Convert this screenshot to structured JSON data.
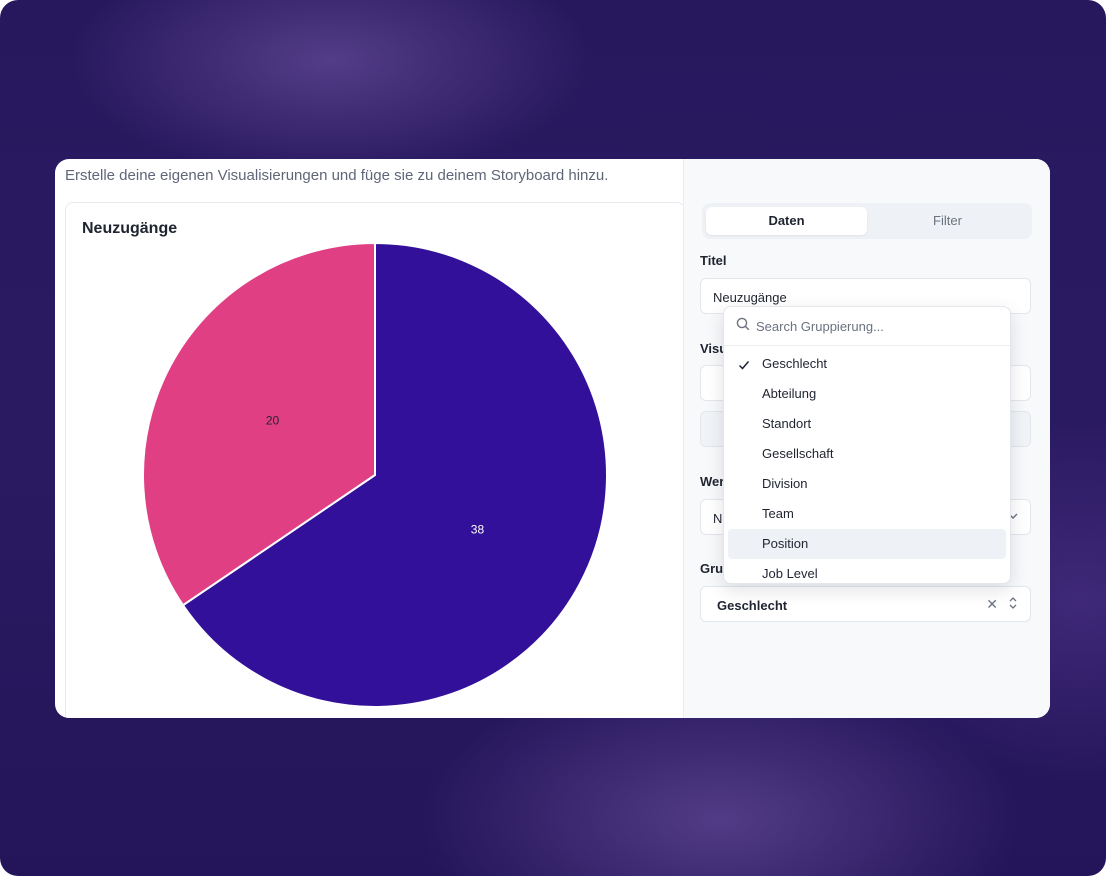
{
  "intro_text": "Erstelle deine eigenen Visualisierungen und füge sie zu deinem Storyboard hinzu.",
  "chart": {
    "title": "Neuzugänge"
  },
  "chart_data": {
    "type": "pie",
    "title": "Neuzugänge",
    "slices": [
      {
        "label": "38",
        "value": 38,
        "color": "#32109a"
      },
      {
        "label": "20",
        "value": 20,
        "color": "#e13f84"
      }
    ]
  },
  "tabs": [
    {
      "label": "Daten",
      "active": true
    },
    {
      "label": "Filter",
      "active": false
    }
  ],
  "form": {
    "title_label": "Titel",
    "title_value": "Neuzugänge",
    "visualisation_label": "Visu",
    "values_label": "Wer",
    "values_value": "Ne",
    "grouping_label": "Grup",
    "grouping_value": "Geschlecht"
  },
  "dropdown": {
    "search_placeholder": "Search Gruppierung...",
    "items": [
      {
        "label": "Geschlecht",
        "selected": true
      },
      {
        "label": "Abteilung",
        "selected": false
      },
      {
        "label": "Standort",
        "selected": false
      },
      {
        "label": "Gesellschaft",
        "selected": false
      },
      {
        "label": "Division",
        "selected": false
      },
      {
        "label": "Team",
        "selected": false
      },
      {
        "label": "Position",
        "selected": false,
        "hover": true
      },
      {
        "label": "Job Level",
        "selected": false
      }
    ]
  },
  "icons": {
    "search": "search-icon",
    "check": "check-icon",
    "clear": "clear-icon",
    "sort": "chevron-up-down-icon"
  }
}
